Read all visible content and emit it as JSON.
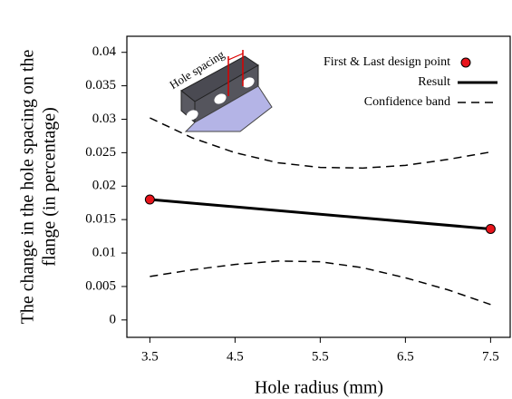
{
  "chart_data": {
    "type": "line",
    "xlabel": "Hole radius (mm)",
    "ylabel": [
      "The change in the hole spacing on the",
      "flange (in percentage)"
    ],
    "inset_label": "Hole spacing",
    "xlim": [
      3.23,
      7.73
    ],
    "ylim": [
      -0.0026,
      0.0424
    ],
    "xticks": [
      3.5,
      4.5,
      5.5,
      6.5,
      7.5
    ],
    "yticks": [
      0,
      0.005,
      0.01,
      0.015,
      0.02,
      0.025,
      0.03,
      0.035,
      0.04
    ],
    "legend": "upper right",
    "series": [
      {
        "name": "First & Last design point",
        "kind": "scatter",
        "color": "#e8141b",
        "x": [
          3.5,
          7.5
        ],
        "values": [
          0.018,
          0.0136
        ]
      },
      {
        "name": "Result",
        "kind": "line",
        "color": "#000000",
        "x": [
          3.5,
          7.5
        ],
        "values": [
          0.018,
          0.0136
        ]
      },
      {
        "name": "Confidence band",
        "kind": "dashed",
        "color": "#000000",
        "x": [
          3.5,
          4,
          4.5,
          5,
          5.5,
          6,
          6.5,
          7,
          7.5
        ],
        "values": [
          0.0302,
          0.0272,
          0.025,
          0.0235,
          0.0228,
          0.0227,
          0.0231,
          0.024,
          0.0251
        ],
        "lower": [
          0.0065,
          0.0075,
          0.0083,
          0.0088,
          0.0087,
          0.0078,
          0.0063,
          0.0045,
          0.0023
        ]
      }
    ]
  }
}
